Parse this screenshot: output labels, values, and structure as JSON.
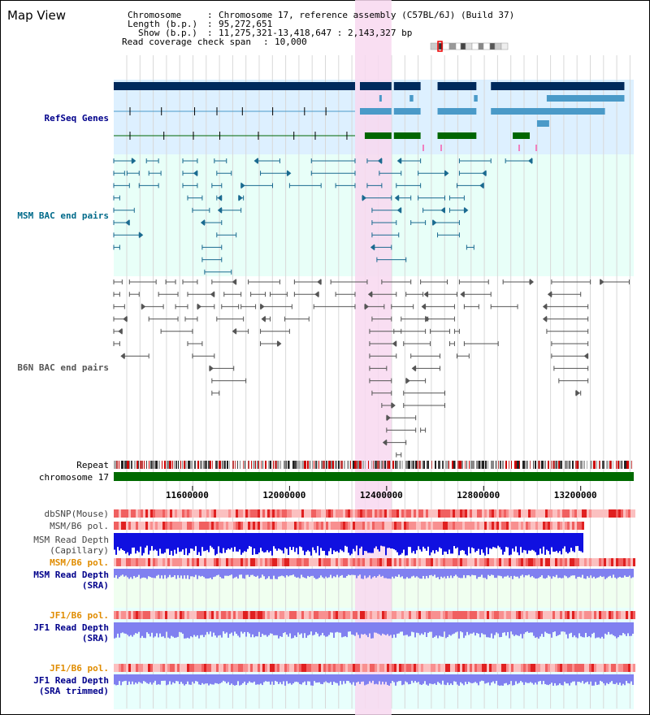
{
  "view": {
    "title": "Map View",
    "info": {
      "chromosome_key": "Chromosome",
      "chromosome_val": "Chromosome 17, reference assembly (C57BL/6J) (Build 37)",
      "length_key": "Length (b.p.)",
      "length_val": "95,272,651",
      "show_key": "Show (b.p.)",
      "show_val": "11,275,321-13,418,647 : 2,143,327 bp",
      "coverage_key": "Read coverage check span",
      "coverage_val": "10,000"
    }
  },
  "region": {
    "start": 11275321,
    "end": 13418647,
    "highlight_start": 12270000,
    "highlight_end": 12420000
  },
  "colors": {
    "refseq_bg": "#ddf0ff",
    "bac_bg": "#e8fff8",
    "highlight": "#f8d8f0",
    "navy": "#002a5c",
    "gene_light": "#4a9ac8",
    "gene_green": "#006600",
    "msm_color": "#1a6a90",
    "b6n_color": "#555555",
    "chromosome_green": "#006a00",
    "read_depth_blue": "#1010e0",
    "read_depth_light": "#8080f0",
    "pol_red": "#f08080",
    "orange_label": "#e08c00",
    "navy_label": "#00008b"
  },
  "labels": {
    "refseq": "RefSeq Genes",
    "msm_bac": "MSM BAC end pairs",
    "b6n_bac": "B6N BAC end pairs",
    "repeat": "Repeat",
    "chromosome": "chromosome 17",
    "dbsnp": "dbSNP(Mouse)",
    "msm_pol1": "MSM/B6 pol.",
    "msm_rd_cap": "MSM Read Depth\n(Capillary)",
    "msm_pol2": "MSM/B6 pol.",
    "msm_rd_sra": "MSM Read Depth\n(SRA)",
    "jf1_pol1": "JF1/B6 pol.",
    "jf1_rd_sra": "JF1 Read Depth\n(SRA)",
    "jf1_pol2": "JF1/B6 pol.",
    "jf1_rd_trim": "JF1 Read Depth\n(SRA trimmed)"
  },
  "axis": {
    "ticks": [
      {
        "bp": 11600000,
        "label": "11600000"
      },
      {
        "bp": 12000000,
        "label": "12000000"
      },
      {
        "bp": 12400000,
        "label": "12400000"
      },
      {
        "bp": 12800000,
        "label": "12800000"
      },
      {
        "bp": 13200000,
        "label": "13200000"
      }
    ]
  },
  "refseq_genes": [
    {
      "start": 11275321,
      "end": 12270000,
      "row": 0,
      "style": "navy"
    },
    {
      "start": 12290000,
      "end": 12420000,
      "row": 0,
      "style": "navy"
    },
    {
      "start": 12430000,
      "end": 12540000,
      "row": 0,
      "style": "navy"
    },
    {
      "start": 12610000,
      "end": 12770000,
      "row": 0,
      "style": "navy"
    },
    {
      "start": 12830000,
      "end": 13380000,
      "row": 0,
      "style": "navy"
    },
    {
      "start": 12370000,
      "end": 12380000,
      "row": 1,
      "style": "light"
    },
    {
      "start": 12495000,
      "end": 12510000,
      "row": 1,
      "style": "light"
    },
    {
      "start": 12760000,
      "end": 12775000,
      "row": 1,
      "style": "light"
    },
    {
      "start": 13060000,
      "end": 13380000,
      "row": 1,
      "style": "light"
    },
    {
      "start": 11275321,
      "end": 12270000,
      "row": 2,
      "style": "thin"
    },
    {
      "start": 12290000,
      "end": 12420000,
      "row": 2,
      "style": "light"
    },
    {
      "start": 12430000,
      "end": 12540000,
      "row": 2,
      "style": "light"
    },
    {
      "start": 12610000,
      "end": 12770000,
      "row": 2,
      "style": "light"
    },
    {
      "start": 12830000,
      "end": 13300000,
      "row": 2,
      "style": "light"
    },
    {
      "start": 13020000,
      "end": 13070000,
      "row": 3,
      "style": "light"
    },
    {
      "start": 11275321,
      "end": 12270000,
      "row": 4,
      "style": "thinGreen"
    },
    {
      "start": 12310000,
      "end": 12420000,
      "row": 4,
      "style": "green"
    },
    {
      "start": 12430000,
      "end": 12540000,
      "row": 4,
      "style": "green"
    },
    {
      "start": 12610000,
      "end": 12770000,
      "row": 4,
      "style": "green"
    },
    {
      "start": 12920000,
      "end": 12990000,
      "row": 4,
      "style": "green"
    }
  ],
  "msm_pairs": [
    [
      11275321,
      11350000,
      0
    ],
    [
      11410000,
      11460000,
      0
    ],
    [
      11560000,
      11620000,
      0
    ],
    [
      11690000,
      11740000,
      0
    ],
    [
      11870000,
      11960000,
      0
    ],
    [
      12090000,
      12270000,
      0
    ],
    [
      12320000,
      12380000,
      0
    ],
    [
      12460000,
      12540000,
      0
    ],
    [
      12700000,
      12830000,
      0
    ],
    [
      12890000,
      13000000,
      0
    ],
    [
      11275321,
      11320000,
      1
    ],
    [
      11330000,
      11380000,
      1
    ],
    [
      11420000,
      11470000,
      1
    ],
    [
      11560000,
      11620000,
      1
    ],
    [
      11700000,
      11760000,
      1
    ],
    [
      11880000,
      11990000,
      1
    ],
    [
      12090000,
      12270000,
      1
    ],
    [
      12370000,
      12460000,
      1
    ],
    [
      12530000,
      12640000,
      1
    ],
    [
      12700000,
      12810000,
      1
    ],
    [
      11275321,
      11340000,
      2
    ],
    [
      11380000,
      11460000,
      2
    ],
    [
      11560000,
      11620000,
      2
    ],
    [
      11680000,
      11720000,
      2
    ],
    [
      11800000,
      11930000,
      2
    ],
    [
      12000000,
      12130000,
      2
    ],
    [
      12190000,
      12270000,
      2
    ],
    [
      12320000,
      12380000,
      2
    ],
    [
      12440000,
      12540000,
      2
    ],
    [
      12690000,
      12800000,
      2
    ],
    [
      11275321,
      11300000,
      3
    ],
    [
      11580000,
      11640000,
      3
    ],
    [
      11700000,
      11720000,
      3
    ],
    [
      11790000,
      11810000,
      3
    ],
    [
      12300000,
      12420000,
      3
    ],
    [
      12450000,
      12500000,
      3
    ],
    [
      12530000,
      12640000,
      3
    ],
    [
      12660000,
      12720000,
      3
    ],
    [
      11275321,
      11360000,
      4
    ],
    [
      11600000,
      11670000,
      4
    ],
    [
      11720000,
      11800000,
      4
    ],
    [
      12340000,
      12460000,
      4
    ],
    [
      12550000,
      12640000,
      4
    ],
    [
      12660000,
      12720000,
      4
    ],
    [
      11275321,
      11340000,
      5
    ],
    [
      11650000,
      11720000,
      5
    ],
    [
      12340000,
      12440000,
      5
    ],
    [
      12500000,
      12560000,
      5
    ],
    [
      12590000,
      12700000,
      5
    ],
    [
      11275321,
      11380000,
      6
    ],
    [
      11700000,
      11780000,
      6
    ],
    [
      12340000,
      12450000,
      6
    ],
    [
      12610000,
      12700000,
      6
    ],
    [
      11275321,
      11300000,
      7
    ],
    [
      11640000,
      11720000,
      7
    ],
    [
      12350000,
      12420000,
      7
    ],
    [
      12730000,
      12760000,
      7
    ],
    [
      11640000,
      11720000,
      8
    ],
    [
      12360000,
      12480000,
      8
    ],
    [
      11650000,
      11760000,
      9
    ]
  ],
  "b6n_pairs": [
    [
      11275321,
      11310000,
      0
    ],
    [
      11340000,
      11450000,
      0
    ],
    [
      11490000,
      11530000,
      0
    ],
    [
      11560000,
      11620000,
      0
    ],
    [
      11680000,
      11780000,
      0
    ],
    [
      11830000,
      11960000,
      0
    ],
    [
      12020000,
      12130000,
      0
    ],
    [
      12170000,
      12320000,
      0
    ],
    [
      12380000,
      12500000,
      0
    ],
    [
      12540000,
      12650000,
      0
    ],
    [
      12700000,
      12820000,
      0
    ],
    [
      12880000,
      12990000,
      0
    ],
    [
      13080000,
      13240000,
      0
    ],
    [
      13280000,
      13400000,
      0
    ],
    [
      11275321,
      11300000,
      1
    ],
    [
      11340000,
      11380000,
      1
    ],
    [
      11460000,
      11540000,
      1
    ],
    [
      11580000,
      11690000,
      1
    ],
    [
      11730000,
      11800000,
      1
    ],
    [
      11840000,
      11900000,
      1
    ],
    [
      11920000,
      11990000,
      1
    ],
    [
      12020000,
      12120000,
      1
    ],
    [
      12190000,
      12270000,
      1
    ],
    [
      12340000,
      12440000,
      1
    ],
    [
      12480000,
      12550000,
      1
    ],
    [
      12570000,
      12690000,
      1
    ],
    [
      12720000,
      12830000,
      1
    ],
    [
      13080000,
      13200000,
      1
    ],
    [
      11275321,
      11320000,
      2
    ],
    [
      11390000,
      11480000,
      2
    ],
    [
      11530000,
      11580000,
      2
    ],
    [
      11620000,
      11690000,
      2
    ],
    [
      11720000,
      11790000,
      2
    ],
    [
      11800000,
      11860000,
      2
    ],
    [
      11880000,
      12010000,
      2
    ],
    [
      12100000,
      12270000,
      2
    ],
    [
      12310000,
      12390000,
      2
    ],
    [
      12420000,
      12510000,
      2
    ],
    [
      12560000,
      12680000,
      2
    ],
    [
      12720000,
      12780000,
      2
    ],
    [
      12830000,
      12940000,
      2
    ],
    [
      13060000,
      13230000,
      2
    ],
    [
      11275321,
      11330000,
      3
    ],
    [
      11420000,
      11540000,
      3
    ],
    [
      11570000,
      11620000,
      3
    ],
    [
      11700000,
      11810000,
      3
    ],
    [
      11900000,
      11920000,
      3
    ],
    [
      11980000,
      12080000,
      3
    ],
    [
      12340000,
      12420000,
      3
    ],
    [
      12460000,
      12560000,
      3
    ],
    [
      12570000,
      12680000,
      3
    ],
    [
      13060000,
      13230000,
      3
    ],
    [
      11275321,
      11310000,
      4
    ],
    [
      11470000,
      11600000,
      4
    ],
    [
      11780000,
      11830000,
      4
    ],
    [
      11880000,
      12000000,
      4
    ],
    [
      12330000,
      12460000,
      4
    ],
    [
      12430000,
      12560000,
      4
    ],
    [
      12580000,
      12660000,
      4
    ],
    [
      12680000,
      12700000,
      4
    ],
    [
      13060000,
      13230000,
      4
    ],
    [
      11275321,
      11300000,
      5
    ],
    [
      11580000,
      11640000,
      5
    ],
    [
      11880000,
      11950000,
      5
    ],
    [
      12330000,
      12440000,
      5
    ],
    [
      12470000,
      12580000,
      5
    ],
    [
      12660000,
      12680000,
      5
    ],
    [
      12720000,
      12860000,
      5
    ],
    [
      13080000,
      13230000,
      5
    ],
    [
      11320000,
      11420000,
      6
    ],
    [
      11600000,
      11690000,
      6
    ],
    [
      12330000,
      12440000,
      6
    ],
    [
      12500000,
      12620000,
      6
    ],
    [
      12690000,
      12740000,
      6
    ],
    [
      13080000,
      13230000,
      6
    ],
    [
      11670000,
      11770000,
      7
    ],
    [
      12330000,
      12400000,
      7
    ],
    [
      12520000,
      12620000,
      7
    ],
    [
      13090000,
      13230000,
      7
    ],
    [
      11680000,
      11820000,
      8
    ],
    [
      12330000,
      12420000,
      8
    ],
    [
      12480000,
      12560000,
      8
    ],
    [
      13110000,
      13230000,
      8
    ],
    [
      11680000,
      11710000,
      9
    ],
    [
      12340000,
      12420000,
      9
    ],
    [
      12470000,
      12640000,
      9
    ],
    [
      13180000,
      13200000,
      9
    ],
    [
      12380000,
      12420000,
      10
    ],
    [
      12470000,
      12640000,
      10
    ],
    [
      12400000,
      12520000,
      11
    ],
    [
      12400000,
      12520000,
      12
    ],
    [
      12540000,
      12560000,
      12
    ],
    [
      12400000,
      12480000,
      13
    ],
    [
      12440000,
      12460000,
      14
    ]
  ]
}
